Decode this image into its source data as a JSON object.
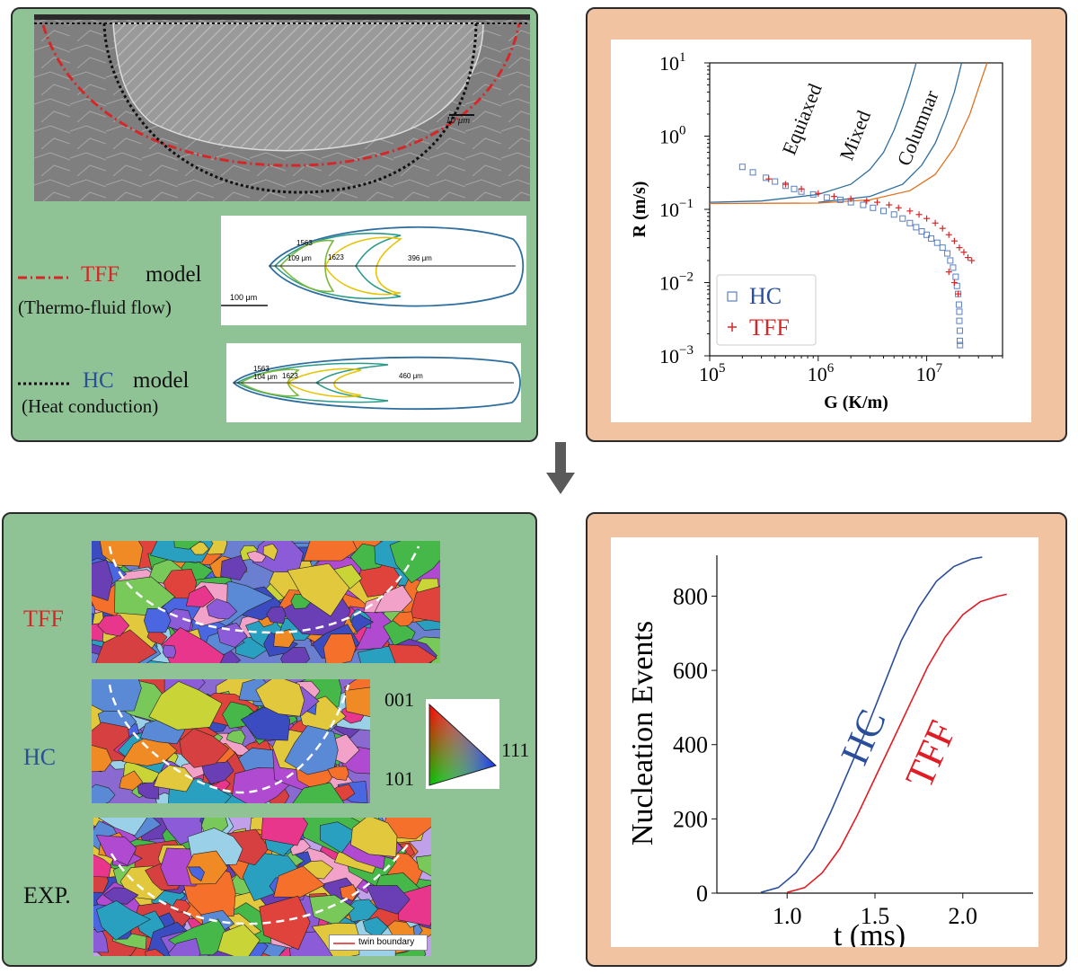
{
  "top_left": {
    "scale_bar_micrograph": "10 μm",
    "tff_legend": {
      "name": "TFF",
      "word": "model",
      "sub": "(Thermo-fluid flow)",
      "color": "#d62728"
    },
    "hc_legend": {
      "name": "HC",
      "word": "model",
      "sub": "(Heat conduction)",
      "color": "#2a4e9a"
    },
    "tff_pool": {
      "iso_a": "1563",
      "iso_b": "1623",
      "width_label": "109 μm",
      "length_label": "396 μm",
      "scale_bar": "100 μm"
    },
    "hc_pool": {
      "iso_a": "1563",
      "iso_b": "1623",
      "width_label": "104 μm",
      "length_label": "460 μm"
    }
  },
  "arrow": {
    "direction": "down",
    "color": "#5a5a5a"
  },
  "bottom_left": {
    "row_labels": {
      "tff": "TFF",
      "hc": "HC",
      "exp": "EXP."
    },
    "row_colors": {
      "tff": "#d62728",
      "hc": "#2a4e9a",
      "exp": "#111111"
    },
    "ipf_key": {
      "c001": "001",
      "c101": "101",
      "c111": "111"
    },
    "twin_legend": "twin boundary"
  },
  "chart_data": [
    {
      "type": "scatter",
      "xlabel": "G (K/m)",
      "ylabel": "R (m/s)",
      "x_scale": "log",
      "y_scale": "log",
      "xlim": [
        100000,
        50000000
      ],
      "ylim": [
        0.001,
        10
      ],
      "x_ticks": [
        {
          "v": 100000,
          "b": "10",
          "e": "5"
        },
        {
          "v": 1000000,
          "b": "10",
          "e": "6"
        },
        {
          "v": 10000000,
          "b": "10",
          "e": "7"
        }
      ],
      "y_ticks": [
        {
          "v": 0.001,
          "b": "10",
          "e": "−3"
        },
        {
          "v": 0.01,
          "b": "10",
          "e": "−2"
        },
        {
          "v": 0.1,
          "b": "10",
          "e": "−1"
        },
        {
          "v": 1,
          "b": "10",
          "e": "0"
        },
        {
          "v": 10,
          "b": "10",
          "e": "1"
        }
      ],
      "legend_position": "bottom-left",
      "series": [
        {
          "name": "HC",
          "marker": "square",
          "color": "#5a7fc0",
          "points": [
            [
              200000,
              0.38
            ],
            [
              250000,
              0.32
            ],
            [
              330000,
              0.27
            ],
            [
              400000,
              0.24
            ],
            [
              500000,
              0.21
            ],
            [
              600000,
              0.19
            ],
            [
              700000,
              0.175
            ],
            [
              900000,
              0.16
            ],
            [
              1200000,
              0.145
            ],
            [
              1600000,
              0.135
            ],
            [
              2000000,
              0.125
            ],
            [
              2600000,
              0.115
            ],
            [
              3200000,
              0.105
            ],
            [
              4000000,
              0.095
            ],
            [
              5000000,
              0.085
            ],
            [
              6000000,
              0.075
            ],
            [
              7000000,
              0.065
            ],
            [
              8000000,
              0.057
            ],
            [
              9000000,
              0.05
            ],
            [
              10000000,
              0.045
            ],
            [
              11000000,
              0.04
            ],
            [
              12500000,
              0.035
            ],
            [
              14000000,
              0.03
            ],
            [
              15500000,
              0.025
            ],
            [
              16500000,
              0.02
            ],
            [
              17500000,
              0.016
            ],
            [
              18500000,
              0.012
            ],
            [
              19000000,
              0.009
            ],
            [
              19500000,
              0.007
            ],
            [
              19800000,
              0.005
            ],
            [
              20000000,
              0.004
            ],
            [
              20000000,
              0.003
            ],
            [
              20200000,
              0.0022
            ],
            [
              20200000,
              0.0016
            ],
            [
              20300000,
              0.0014
            ]
          ]
        },
        {
          "name": "TFF",
          "marker": "plus",
          "color": "#d62728",
          "points": [
            [
              350000,
              0.26
            ],
            [
              500000,
              0.22
            ],
            [
              700000,
              0.19
            ],
            [
              1000000,
              0.165
            ],
            [
              1400000,
              0.15
            ],
            [
              2000000,
              0.14
            ],
            [
              2800000,
              0.13
            ],
            [
              3500000,
              0.125
            ],
            [
              4500000,
              0.115
            ],
            [
              5500000,
              0.105
            ],
            [
              7000000,
              0.095
            ],
            [
              8500000,
              0.085
            ],
            [
              10000000,
              0.075
            ],
            [
              12000000,
              0.065
            ],
            [
              14000000,
              0.055
            ],
            [
              16000000,
              0.045
            ],
            [
              18000000,
              0.037
            ],
            [
              20000000,
              0.03
            ],
            [
              22000000,
              0.026
            ],
            [
              24000000,
              0.022
            ],
            [
              26000000,
              0.02
            ],
            [
              16000000,
              0.014
            ],
            [
              18000000,
              0.01
            ],
            [
              19500000,
              0.007
            ]
          ]
        }
      ],
      "annotations": [
        {
          "text": "Equiaxed",
          "color": "#111111"
        },
        {
          "text": "Mixed",
          "color": "#111111"
        },
        {
          "text": "Columnar",
          "color": "#111111"
        }
      ],
      "curves": [
        {
          "name": "equiaxed-boundary",
          "color": "#2e6e9e",
          "points": [
            [
              100000,
              0.125
            ],
            [
              300000,
              0.13
            ],
            [
              1000000,
              0.16
            ],
            [
              2000000,
              0.22
            ],
            [
              3000000,
              0.35
            ],
            [
              4000000,
              0.6
            ],
            [
              5000000,
              1.2
            ],
            [
              6000000,
              2.5
            ],
            [
              7000000,
              5
            ],
            [
              8000000,
              10
            ]
          ]
        },
        {
          "name": "mixed-boundary",
          "color": "#2e6e9e",
          "points": [
            [
              1000000,
              0.125
            ],
            [
              3000000,
              0.15
            ],
            [
              6000000,
              0.22
            ],
            [
              9000000,
              0.4
            ],
            [
              12000000,
              0.8
            ],
            [
              15000000,
              1.8
            ],
            [
              18000000,
              4
            ],
            [
              21000000,
              10
            ]
          ]
        },
        {
          "name": "columnar-boundary",
          "color": "#e07020",
          "points": [
            [
              100000,
              0.12
            ],
            [
              1000000,
              0.122
            ],
            [
              3000000,
              0.135
            ],
            [
              7000000,
              0.18
            ],
            [
              12000000,
              0.3
            ],
            [
              18000000,
              0.7
            ],
            [
              25000000,
              2
            ],
            [
              32000000,
              6
            ],
            [
              36000000,
              10
            ]
          ]
        }
      ]
    },
    {
      "type": "line",
      "xlabel": "t (ms)",
      "ylabel": "Nucleation Events",
      "xlim": [
        0.6,
        2.4
      ],
      "ylim": [
        0,
        910
      ],
      "x_ticks": [
        "1.0",
        "1.5",
        "2.0"
      ],
      "y_ticks": [
        "0",
        "200",
        "400",
        "600",
        "800"
      ],
      "series": [
        {
          "name": "HC",
          "color": "#2a4e9a",
          "x": [
            0.85,
            0.95,
            1.05,
            1.15,
            1.25,
            1.35,
            1.45,
            1.55,
            1.65,
            1.75,
            1.85,
            1.95,
            2.05,
            2.11
          ],
          "y": [
            2,
            15,
            55,
            120,
            220,
            330,
            440,
            560,
            680,
            770,
            840,
            880,
            900,
            905
          ]
        },
        {
          "name": "TFF",
          "color": "#e01c24",
          "x": [
            1.0,
            1.1,
            1.2,
            1.3,
            1.4,
            1.5,
            1.6,
            1.7,
            1.8,
            1.9,
            2.0,
            2.1,
            2.2,
            2.25
          ],
          "y": [
            2,
            15,
            55,
            120,
            210,
            310,
            410,
            510,
            610,
            690,
            750,
            785,
            800,
            805
          ]
        }
      ],
      "annotations": [
        {
          "text": "HC",
          "color": "#2a4e9a"
        },
        {
          "text": "TFF",
          "color": "#e01c24"
        }
      ]
    }
  ]
}
